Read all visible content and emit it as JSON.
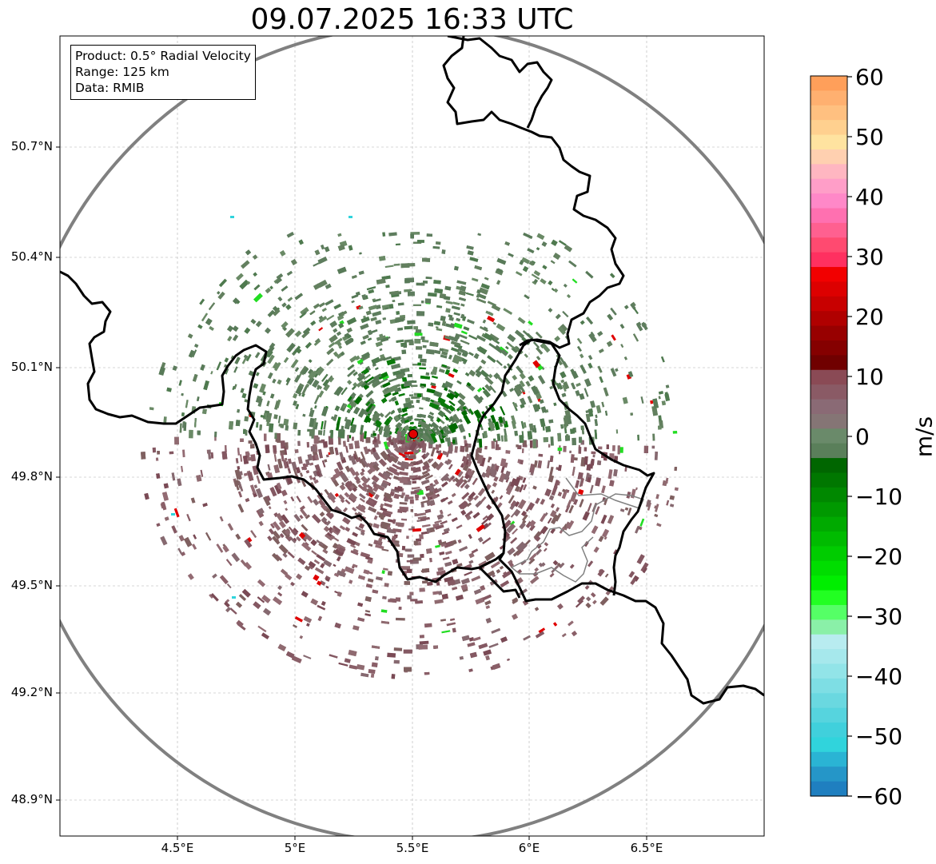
{
  "title": "09.07.2025 16:33 UTC",
  "info": {
    "product": "Product: 0.5° Radial Velocity",
    "range": "Range: 125 km",
    "data": "Data: RMIB"
  },
  "lat_labels": [
    "50.7°N",
    "50.4°N",
    "50.1°N",
    "49.8°N",
    "49.5°N",
    "49.2°N",
    "48.9°N"
  ],
  "lon_labels": [
    "4.5°E",
    "5°E",
    "5.5°E",
    "6°E",
    "6.5°E"
  ],
  "colorbar": {
    "unit": "m/s",
    "min": -60,
    "max": 60,
    "ticks": [
      "60",
      "50",
      "40",
      "30",
      "20",
      "10",
      "0",
      "−10",
      "−20",
      "−30",
      "−40",
      "−50",
      "−60"
    ],
    "colors_high_to_low": [
      "#ff9f5a",
      "#ffb070",
      "#ffc080",
      "#ffd08f",
      "#ffe3a0",
      "#ffd0b0",
      "#ffb6c1",
      "#ff9ec8",
      "#ff88c8",
      "#ff70b0",
      "#ff6090",
      "#ff4a70",
      "#ff3060",
      "#f20000",
      "#dd0000",
      "#c80000",
      "#b00000",
      "#980000",
      "#850000",
      "#700000",
      "#8a4a55",
      "#8a5a65",
      "#8a6a75",
      "#857575",
      "#6a8a6a",
      "#5a7f5a",
      "#006600",
      "#007700",
      "#008800",
      "#009900",
      "#00aa00",
      "#00bb00",
      "#00cc00",
      "#00dd00",
      "#00ee00",
      "#22ff22",
      "#55ff66",
      "#8af0a8",
      "#b8ecf0",
      "#a6e8ec",
      "#92e4e8",
      "#7edee4",
      "#6ad8e0",
      "#56d4de",
      "#40d0dc",
      "#30d4dc",
      "#2ab4d4",
      "#2596c8",
      "#1f7fc0"
    ]
  },
  "radar_site": {
    "lon": 5.505,
    "lat": 49.914,
    "color": "#e00000"
  },
  "range_ring_color": "#808080"
}
